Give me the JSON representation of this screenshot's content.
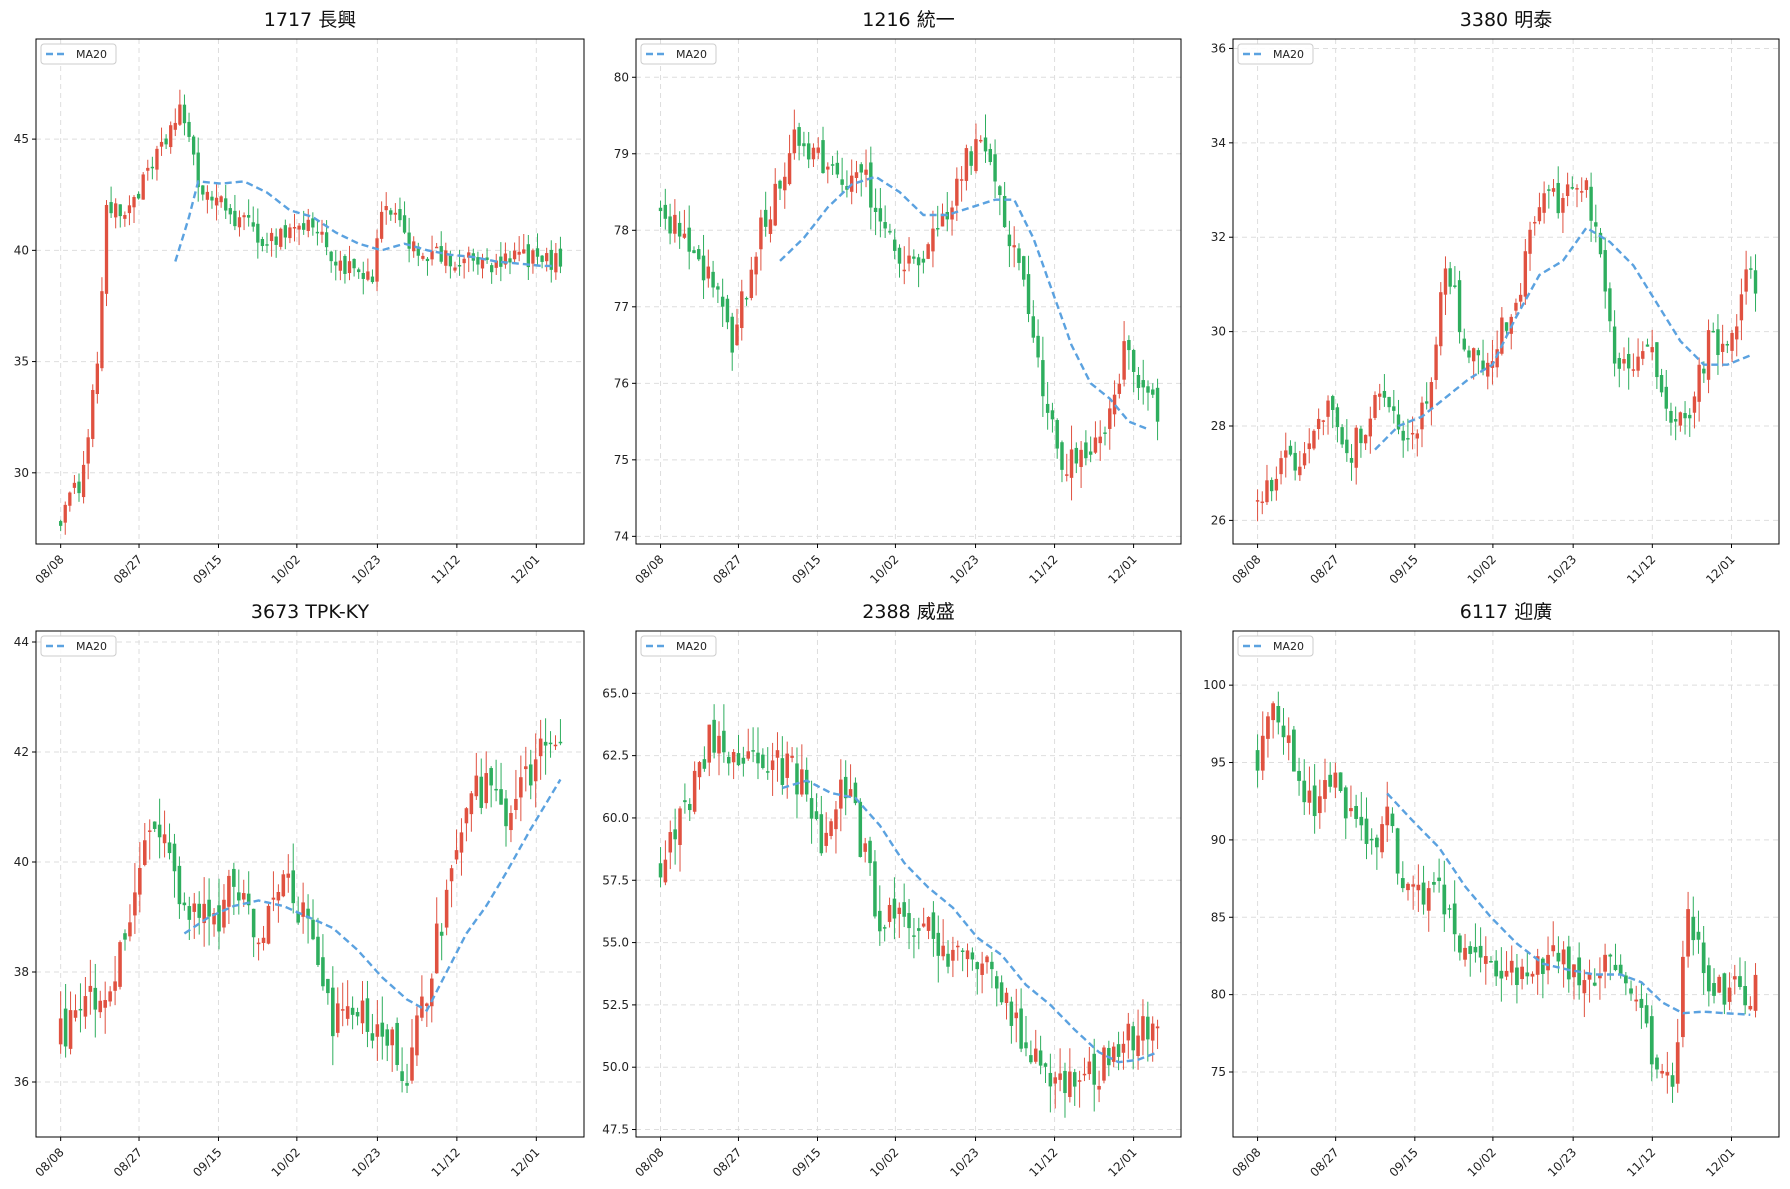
{
  "chart_data": [
    {
      "type": "candlestick",
      "title": "1717 長興",
      "legend": [
        "MA20"
      ],
      "legend_position": "top-left",
      "grid": true,
      "ylim": [
        26.8,
        49.5
      ],
      "yticks": [
        30,
        35,
        40,
        45
      ],
      "x_categories": [
        "08/08",
        "08/27",
        "09/15",
        "10/02",
        "10/23",
        "11/12",
        "12/01"
      ],
      "start_value": 28.0,
      "waypoints": [
        [
          0,
          28.0
        ],
        [
          4,
          29.5
        ],
        [
          6,
          31.9
        ],
        [
          8,
          35.0
        ],
        [
          10,
          42.0
        ],
        [
          13,
          41.5
        ],
        [
          18,
          43.0
        ],
        [
          22,
          44.5
        ],
        [
          26,
          46.5
        ],
        [
          30,
          43.0
        ],
        [
          35,
          42.0
        ],
        [
          40,
          41.2
        ],
        [
          45,
          40.4
        ],
        [
          50,
          41.0
        ],
        [
          55,
          41.2
        ],
        [
          60,
          39.5
        ],
        [
          64,
          39.0
        ],
        [
          68,
          38.5
        ],
        [
          70,
          42.0
        ],
        [
          74,
          41.0
        ],
        [
          78,
          40.0
        ],
        [
          85,
          39.5
        ],
        [
          90,
          39.5
        ],
        [
          95,
          39.2
        ],
        [
          100,
          39.8
        ],
        [
          105,
          39.5
        ],
        [
          109,
          39.5
        ]
      ],
      "ma_waypoints": [
        [
          25,
          39.5
        ],
        [
          28,
          41.5
        ],
        [
          30,
          43.1
        ],
        [
          35,
          43.0
        ],
        [
          40,
          43.1
        ],
        [
          45,
          42.6
        ],
        [
          50,
          41.8
        ],
        [
          55,
          41.5
        ],
        [
          60,
          40.8
        ],
        [
          65,
          40.3
        ],
        [
          70,
          40.0
        ],
        [
          75,
          40.3
        ],
        [
          80,
          40.0
        ],
        [
          85,
          39.8
        ],
        [
          90,
          39.7
        ],
        [
          95,
          39.5
        ],
        [
          100,
          39.4
        ],
        [
          105,
          39.3
        ],
        [
          108,
          39.3
        ]
      ],
      "noise": 0.45,
      "volatility": 0.8
    },
    {
      "type": "candlestick",
      "title": "1216 統一",
      "legend": [
        "MA20"
      ],
      "legend_position": "top-left",
      "grid": true,
      "ylim": [
        73.9,
        80.5
      ],
      "yticks": [
        74,
        75,
        76,
        77,
        78,
        79,
        80
      ],
      "x_categories": [
        "08/08",
        "08/27",
        "09/15",
        "10/02",
        "10/23",
        "11/12",
        "12/01"
      ],
      "start_value": 78.2,
      "waypoints": [
        [
          0,
          78.2
        ],
        [
          5,
          78.0
        ],
        [
          10,
          77.4
        ],
        [
          15,
          76.5
        ],
        [
          20,
          77.8
        ],
        [
          24,
          78.5
        ],
        [
          28,
          79.2
        ],
        [
          33,
          79.0
        ],
        [
          38,
          78.5
        ],
        [
          43,
          78.6
        ],
        [
          48,
          77.8
        ],
        [
          53,
          77.5
        ],
        [
          58,
          78.0
        ],
        [
          63,
          78.8
        ],
        [
          68,
          79.2
        ],
        [
          72,
          78.0
        ],
        [
          76,
          77.5
        ],
        [
          80,
          75.8
        ],
        [
          84,
          75.0
        ],
        [
          88,
          75.0
        ],
        [
          93,
          75.2
        ],
        [
          97,
          76.5
        ],
        [
          101,
          75.8
        ],
        [
          104,
          75.6
        ]
      ],
      "ma_waypoints": [
        [
          25,
          77.6
        ],
        [
          30,
          77.9
        ],
        [
          35,
          78.3
        ],
        [
          40,
          78.6
        ],
        [
          45,
          78.7
        ],
        [
          50,
          78.5
        ],
        [
          55,
          78.2
        ],
        [
          60,
          78.2
        ],
        [
          65,
          78.3
        ],
        [
          70,
          78.4
        ],
        [
          74,
          78.4
        ],
        [
          78,
          77.9
        ],
        [
          82,
          77.2
        ],
        [
          86,
          76.5
        ],
        [
          90,
          76.0
        ],
        [
          94,
          75.8
        ],
        [
          98,
          75.5
        ],
        [
          102,
          75.4
        ]
      ],
      "noise": 0.2,
      "volatility": 0.35
    },
    {
      "type": "candlestick",
      "title": "3380 明泰",
      "legend": [
        "MA20"
      ],
      "legend_position": "top-left",
      "grid": true,
      "ylim": [
        25.5,
        36.2
      ],
      "yticks": [
        26,
        28,
        30,
        32,
        34,
        36
      ],
      "x_categories": [
        "08/08",
        "08/27",
        "09/15",
        "10/02",
        "10/23",
        "11/12",
        "12/01"
      ],
      "start_value": 26.3,
      "waypoints": [
        [
          0,
          26.3
        ],
        [
          5,
          27.2
        ],
        [
          10,
          27.4
        ],
        [
          15,
          28.3
        ],
        [
          20,
          27.5
        ],
        [
          25,
          28.5
        ],
        [
          30,
          28.0
        ],
        [
          33,
          27.8
        ],
        [
          37,
          28.7
        ],
        [
          40,
          31.5
        ],
        [
          44,
          29.8
        ],
        [
          48,
          29.0
        ],
        [
          52,
          30.0
        ],
        [
          56,
          31.0
        ],
        [
          60,
          32.8
        ],
        [
          65,
          32.8
        ],
        [
          70,
          33.0
        ],
        [
          72,
          32.0
        ],
        [
          76,
          29.5
        ],
        [
          80,
          29.3
        ],
        [
          84,
          29.5
        ],
        [
          88,
          28.0
        ],
        [
          92,
          28.2
        ],
        [
          96,
          29.8
        ],
        [
          100,
          29.5
        ],
        [
          104,
          31.2
        ],
        [
          106,
          31.0
        ]
      ],
      "ma_waypoints": [
        [
          25,
          27.5
        ],
        [
          30,
          28.0
        ],
        [
          35,
          28.2
        ],
        [
          40,
          28.6
        ],
        [
          45,
          29.0
        ],
        [
          50,
          29.3
        ],
        [
          55,
          30.3
        ],
        [
          60,
          31.2
        ],
        [
          65,
          31.5
        ],
        [
          70,
          32.2
        ],
        [
          75,
          31.9
        ],
        [
          80,
          31.4
        ],
        [
          85,
          30.6
        ],
        [
          90,
          29.8
        ],
        [
          95,
          29.3
        ],
        [
          100,
          29.3
        ],
        [
          105,
          29.5
        ]
      ],
      "noise": 0.3,
      "volatility": 0.5
    },
    {
      "type": "candlestick",
      "title": "3673 TPK-KY",
      "legend": [
        "MA20"
      ],
      "legend_position": "top-left",
      "grid": true,
      "ylim": [
        35.0,
        44.2
      ],
      "yticks": [
        36,
        38,
        40,
        42,
        44
      ],
      "x_categories": [
        "08/08",
        "08/27",
        "09/15",
        "10/02",
        "10/23",
        "11/12",
        "12/01"
      ],
      "start_value": 36.8,
      "waypoints": [
        [
          0,
          36.8
        ],
        [
          5,
          37.5
        ],
        [
          10,
          37.8
        ],
        [
          15,
          39.5
        ],
        [
          20,
          40.8
        ],
        [
          25,
          39.0
        ],
        [
          30,
          38.8
        ],
        [
          35,
          39.6
        ],
        [
          40,
          38.8
        ],
        [
          45,
          39.5
        ],
        [
          50,
          39.0
        ],
        [
          55,
          37.0
        ],
        [
          60,
          37.2
        ],
        [
          65,
          37.0
        ],
        [
          70,
          36.2
        ],
        [
          74,
          37.5
        ],
        [
          78,
          39.5
        ],
        [
          82,
          41.0
        ],
        [
          86,
          41.5
        ],
        [
          90,
          41.0
        ],
        [
          94,
          41.5
        ],
        [
          98,
          42.5
        ],
        [
          101,
          42.2
        ]
      ],
      "ma_waypoints": [
        [
          25,
          38.7
        ],
        [
          30,
          39.0
        ],
        [
          35,
          39.2
        ],
        [
          40,
          39.3
        ],
        [
          45,
          39.2
        ],
        [
          50,
          39.0
        ],
        [
          55,
          38.8
        ],
        [
          60,
          38.4
        ],
        [
          65,
          37.9
        ],
        [
          70,
          37.5
        ],
        [
          74,
          37.3
        ],
        [
          78,
          38.0
        ],
        [
          82,
          38.7
        ],
        [
          86,
          39.2
        ],
        [
          90,
          39.8
        ],
        [
          95,
          40.6
        ],
        [
          101,
          41.5
        ]
      ],
      "noise": 0.4,
      "volatility": 0.6
    },
    {
      "type": "candlestick",
      "title": "2388 威盛",
      "legend": [
        "MA20"
      ],
      "legend_position": "top-left",
      "grid": true,
      "ylim": [
        47.2,
        67.5
      ],
      "yticks": [
        47.5,
        50.0,
        52.5,
        55.0,
        57.5,
        60.0,
        62.5,
        65.0
      ],
      "x_categories": [
        "08/08",
        "08/27",
        "09/15",
        "10/02",
        "10/23",
        "11/12",
        "12/01"
      ],
      "start_value": 58.0,
      "waypoints": [
        [
          0,
          58.0
        ],
        [
          5,
          60.0
        ],
        [
          10,
          63.0
        ],
        [
          15,
          62.0
        ],
        [
          20,
          62.5
        ],
        [
          25,
          62.0
        ],
        [
          30,
          61.5
        ],
        [
          33,
          58.5
        ],
        [
          37,
          61.5
        ],
        [
          40,
          60.0
        ],
        [
          45,
          56.0
        ],
        [
          50,
          55.5
        ],
        [
          55,
          55.5
        ],
        [
          60,
          54.5
        ],
        [
          65,
          54.5
        ],
        [
          70,
          53.0
        ],
        [
          75,
          50.5
        ],
        [
          80,
          50.0
        ],
        [
          85,
          49.5
        ],
        [
          90,
          50.0
        ],
        [
          94,
          51.0
        ],
        [
          98,
          51.5
        ],
        [
          102,
          52.0
        ]
      ],
      "ma_waypoints": [
        [
          25,
          61.2
        ],
        [
          30,
          61.5
        ],
        [
          35,
          61.0
        ],
        [
          40,
          60.8
        ],
        [
          45,
          59.7
        ],
        [
          50,
          58.2
        ],
        [
          55,
          57.2
        ],
        [
          60,
          56.4
        ],
        [
          65,
          55.2
        ],
        [
          70,
          54.5
        ],
        [
          75,
          53.3
        ],
        [
          80,
          52.5
        ],
        [
          85,
          51.5
        ],
        [
          90,
          50.6
        ],
        [
          94,
          50.2
        ],
        [
          98,
          50.3
        ],
        [
          102,
          50.6
        ]
      ],
      "noise": 0.8,
      "volatility": 1.2
    },
    {
      "type": "candlestick",
      "title": "6117 迎廣",
      "legend": [
        "MA20"
      ],
      "legend_position": "top-left",
      "grid": true,
      "ylim": [
        70.8,
        103.5
      ],
      "yticks": [
        75,
        80,
        85,
        90,
        95,
        100
      ],
      "x_categories": [
        "08/08",
        "08/27",
        "09/15",
        "10/02",
        "10/23",
        "11/12",
        "12/01"
      ],
      "start_value": 95.0,
      "waypoints": [
        [
          0,
          95.0
        ],
        [
          3,
          99.0
        ],
        [
          6,
          96.0
        ],
        [
          10,
          92.0
        ],
        [
          15,
          94.0
        ],
        [
          20,
          90.0
        ],
        [
          25,
          91.0
        ],
        [
          30,
          86.0
        ],
        [
          35,
          87.0
        ],
        [
          40,
          83.0
        ],
        [
          45,
          82.0
        ],
        [
          50,
          81.5
        ],
        [
          55,
          82.5
        ],
        [
          60,
          82.0
        ],
        [
          65,
          81.0
        ],
        [
          70,
          82.5
        ],
        [
          74,
          79.0
        ],
        [
          78,
          74.0
        ],
        [
          80,
          74.0
        ],
        [
          83,
          85.0
        ],
        [
          87,
          80.0
        ],
        [
          92,
          80.0
        ],
        [
          96,
          80.5
        ]
      ],
      "ma_waypoints": [
        [
          25,
          93.0
        ],
        [
          30,
          91.2
        ],
        [
          35,
          89.5
        ],
        [
          40,
          87.0
        ],
        [
          45,
          85.0
        ],
        [
          50,
          83.3
        ],
        [
          55,
          82.0
        ],
        [
          60,
          81.6
        ],
        [
          65,
          81.3
        ],
        [
          70,
          81.3
        ],
        [
          74,
          80.8
        ],
        [
          78,
          79.5
        ],
        [
          82,
          78.8
        ],
        [
          86,
          78.9
        ],
        [
          90,
          78.8
        ],
        [
          95,
          78.7
        ]
      ],
      "noise": 1.2,
      "volatility": 1.8
    }
  ]
}
